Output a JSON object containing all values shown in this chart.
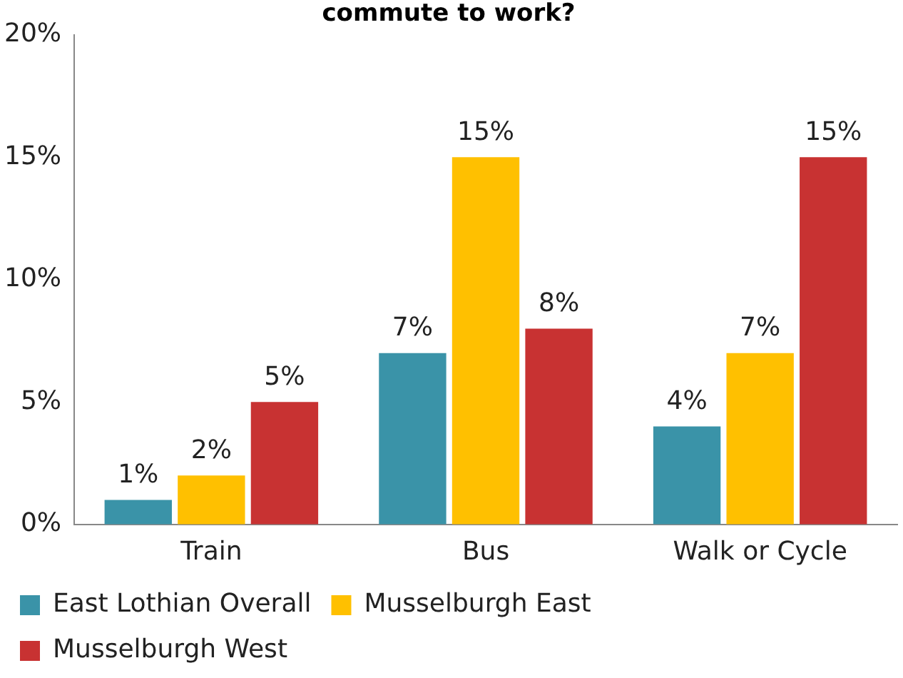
{
  "chart_data": {
    "type": "bar",
    "title": "commute to work?",
    "categories": [
      "Train",
      "Bus",
      "Walk or Cycle"
    ],
    "series": [
      {
        "name": "East Lothian Overall",
        "color": "#3a93a8",
        "values": [
          1,
          7,
          4
        ],
        "value_labels": [
          "1%",
          "7%",
          "4%"
        ]
      },
      {
        "name": "Musselburgh East",
        "color": "#ffc000",
        "values": [
          2,
          15,
          7
        ],
        "value_labels": [
          "2%",
          "15%",
          "7%"
        ]
      },
      {
        "name": "Musselburgh West",
        "color": "#c83232",
        "values": [
          5,
          8,
          15
        ],
        "value_labels": [
          "5%",
          "8%",
          "15%"
        ]
      }
    ],
    "ylim": [
      0,
      20
    ],
    "yticks": [
      {
        "value": 0,
        "label": "0%"
      },
      {
        "value": 5,
        "label": "5%"
      },
      {
        "value": 10,
        "label": "10%"
      },
      {
        "value": 15,
        "label": "15%"
      },
      {
        "value": 20,
        "label": "20%"
      }
    ],
    "grid": false,
    "legend": "bottom"
  }
}
